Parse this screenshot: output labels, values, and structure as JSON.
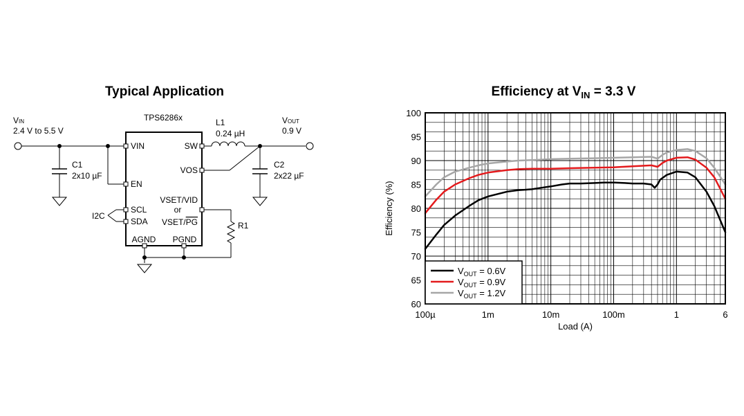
{
  "schematic": {
    "title": "Typical Application",
    "ic_name": "TPS6286x",
    "vin": {
      "label": "V",
      "sub": "IN",
      "value": "2.4 V to 5.5 V"
    },
    "vout": {
      "label": "V",
      "sub": "OUT",
      "value": "0.9 V"
    },
    "l1": {
      "name": "L1",
      "value": "0.24 µH"
    },
    "c1": {
      "name": "C1",
      "value": "2x10 µF"
    },
    "c2": {
      "name": "C2",
      "value": "2x22 µF"
    },
    "r1": {
      "name": "R1"
    },
    "i2c": "I2C",
    "pins": {
      "vin": "VIN",
      "en": "EN",
      "scl": "SCL",
      "sda": "SDA",
      "sw": "SW",
      "vos": "VOS",
      "vset_vid": "VSET/VID",
      "or": "or",
      "vset": "VSET/",
      "pg": "PG",
      "agnd": "AGND",
      "pgnd": "PGND"
    }
  },
  "chart_data": {
    "type": "line",
    "title_main": "Efficiency at V",
    "title_sub": "IN",
    "title_tail": " = 3.3 V",
    "xlabel": "Load (A)",
    "ylabel": "Efficiency (%)",
    "xscale": "log",
    "xlim": [
      0.0001,
      6
    ],
    "ylim": [
      60,
      100
    ],
    "grid": true,
    "legend_position": "bottom-left",
    "x_ticks": [
      {
        "value": 0.0001,
        "label": "100µ"
      },
      {
        "value": 0.001,
        "label": "1m"
      },
      {
        "value": 0.01,
        "label": "10m"
      },
      {
        "value": 0.1,
        "label": "100m"
      },
      {
        "value": 1,
        "label": "1"
      },
      {
        "value": 6,
        "label": "6"
      }
    ],
    "y_ticks": [
      60,
      65,
      70,
      75,
      80,
      85,
      90,
      95,
      100
    ],
    "series": [
      {
        "name_main": "V",
        "name_sub": "OUT",
        "name_tail": " = 0.6V",
        "color": "#000000",
        "x": [
          0.0001,
          0.00015,
          0.0002,
          0.0003,
          0.0005,
          0.0007,
          0.001,
          0.002,
          0.003,
          0.005,
          0.007,
          0.01,
          0.015,
          0.02,
          0.03,
          0.05,
          0.07,
          0.1,
          0.15,
          0.2,
          0.3,
          0.4,
          0.45,
          0.5,
          0.55,
          0.7,
          1.0,
          1.5,
          2.0,
          3.0,
          4.0,
          6.0
        ],
        "y": [
          71.5,
          74.5,
          76.5,
          78.5,
          80.5,
          81.7,
          82.5,
          83.5,
          83.8,
          84.0,
          84.3,
          84.6,
          85.0,
          85.2,
          85.2,
          85.3,
          85.4,
          85.4,
          85.3,
          85.2,
          85.2,
          85.0,
          84.3,
          85.0,
          86.0,
          87.0,
          87.7,
          87.5,
          86.5,
          83.5,
          80.5,
          75.0
        ]
      },
      {
        "name_main": "V",
        "name_sub": "OUT",
        "name_tail": " = 0.9V",
        "color": "#e31a1c",
        "x": [
          0.0001,
          0.00015,
          0.0002,
          0.0003,
          0.0005,
          0.0007,
          0.001,
          0.002,
          0.003,
          0.005,
          0.01,
          0.02,
          0.05,
          0.1,
          0.2,
          0.4,
          0.5,
          0.6,
          0.7,
          1.0,
          1.5,
          2.0,
          3.0,
          4.0,
          6.0
        ],
        "y": [
          79.0,
          81.8,
          83.5,
          85.0,
          86.3,
          87.0,
          87.5,
          88.0,
          88.2,
          88.3,
          88.3,
          88.4,
          88.5,
          88.6,
          88.8,
          89.0,
          88.7,
          89.5,
          90.0,
          90.6,
          90.7,
          90.2,
          88.5,
          86.5,
          82.0
        ]
      },
      {
        "name_main": "V",
        "name_sub": "OUT",
        "name_tail": " = 1.2V",
        "color": "#a6a6a6",
        "x": [
          0.0001,
          0.00015,
          0.0002,
          0.0003,
          0.0005,
          0.0007,
          0.001,
          0.002,
          0.003,
          0.005,
          0.01,
          0.02,
          0.05,
          0.1,
          0.2,
          0.4,
          0.5,
          0.6,
          0.7,
          1.0,
          1.5,
          2.0,
          3.0,
          4.0,
          6.0
        ],
        "y": [
          82.5,
          85.0,
          86.5,
          87.7,
          88.5,
          89.0,
          89.4,
          89.8,
          90.0,
          90.1,
          90.3,
          90.4,
          90.5,
          90.6,
          90.7,
          90.8,
          90.4,
          91.2,
          91.7,
          92.2,
          92.4,
          92.0,
          90.5,
          88.5,
          85.0
        ]
      }
    ]
  }
}
